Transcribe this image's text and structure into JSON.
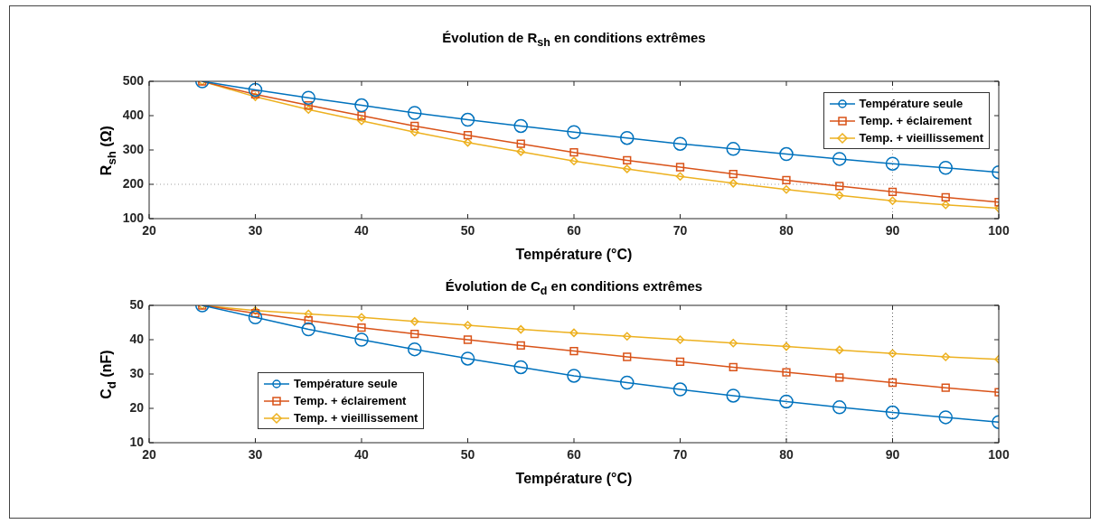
{
  "chart_data": [
    {
      "type": "line",
      "title": "Évolution de R$_{sh}$ en conditions extrêmes",
      "xlabel": "Température (°C)",
      "ylabel": "R$_{sh}$ (Ω)",
      "x": [
        25,
        30,
        35,
        40,
        45,
        50,
        55,
        60,
        65,
        70,
        75,
        80,
        85,
        90,
        95,
        100
      ],
      "series": [
        {
          "name": "Température seule",
          "color": "#0072bd",
          "marker": "circle",
          "values": [
            500,
            475,
            452,
            430,
            408,
            388,
            370,
            352,
            335,
            318,
            303,
            288,
            274,
            260,
            248,
            235
          ]
        },
        {
          "name": "Temp. + éclairement",
          "color": "#d95319",
          "marker": "square",
          "values": [
            500,
            462,
            430,
            400,
            370,
            343,
            318,
            293,
            270,
            250,
            230,
            212,
            195,
            178,
            162,
            148
          ]
        },
        {
          "name": "Temp. + vieillissement",
          "color": "#edb120",
          "marker": "diamond",
          "values": [
            500,
            455,
            418,
            385,
            352,
            322,
            295,
            268,
            245,
            223,
            203,
            185,
            168,
            152,
            140,
            130
          ]
        }
      ],
      "xlim": [
        20,
        100
      ],
      "xticks": [
        20,
        30,
        40,
        50,
        60,
        70,
        80,
        90,
        100
      ],
      "ylim": [
        100,
        500
      ],
      "yticks": [
        100,
        200,
        300,
        400,
        500
      ],
      "grid": false,
      "legend": "top right",
      "ref_lines": [
        {
          "axis": "y",
          "value": 200,
          "color": "#a0a0a0",
          "line_style": "dotted"
        },
        {
          "axis": "x",
          "value": 90,
          "color": "#a0a0a0",
          "line_style": "dotted"
        }
      ]
    },
    {
      "type": "line",
      "title": "Évolution de C$_{d}$ en conditions extrêmes",
      "xlabel": "Température (°C)",
      "ylabel": "C$_{d}$ (nF)",
      "x": [
        25,
        30,
        35,
        40,
        45,
        50,
        55,
        60,
        65,
        70,
        75,
        80,
        85,
        90,
        95,
        100
      ],
      "series": [
        {
          "name": "Température seule",
          "color": "#0072bd",
          "marker": "circle",
          "values": [
            50,
            46.5,
            43,
            40,
            37.2,
            34.5,
            32,
            29.5,
            27.5,
            25.5,
            23.7,
            22,
            20.3,
            18.8,
            17.4,
            16
          ]
        },
        {
          "name": "Temp. + éclairement",
          "color": "#d95319",
          "marker": "square",
          "values": [
            50,
            47.7,
            45.6,
            43.5,
            41.7,
            40,
            38.3,
            36.7,
            35,
            33.6,
            32,
            30.5,
            29,
            27.5,
            26,
            24.7
          ]
        },
        {
          "name": "Temp. + vieillissement",
          "color": "#edb120",
          "marker": "diamond",
          "values": [
            50,
            48.5,
            47.5,
            46.5,
            45.3,
            44.2,
            43,
            42,
            41,
            40,
            39,
            38,
            37,
            36,
            35,
            34.3
          ]
        }
      ],
      "xlim": [
        20,
        100
      ],
      "xticks": [
        20,
        30,
        40,
        50,
        60,
        70,
        80,
        90,
        100
      ],
      "ylim": [
        10,
        50
      ],
      "yticks": [
        10,
        20,
        30,
        40,
        50
      ],
      "grid": false,
      "legend": "bottom left",
      "ref_lines": [
        {
          "axis": "x",
          "value": 80,
          "color": "#606060",
          "line_style": "dotted"
        },
        {
          "axis": "x",
          "value": 90,
          "color": "#606060",
          "line_style": "dotted"
        }
      ]
    }
  ]
}
